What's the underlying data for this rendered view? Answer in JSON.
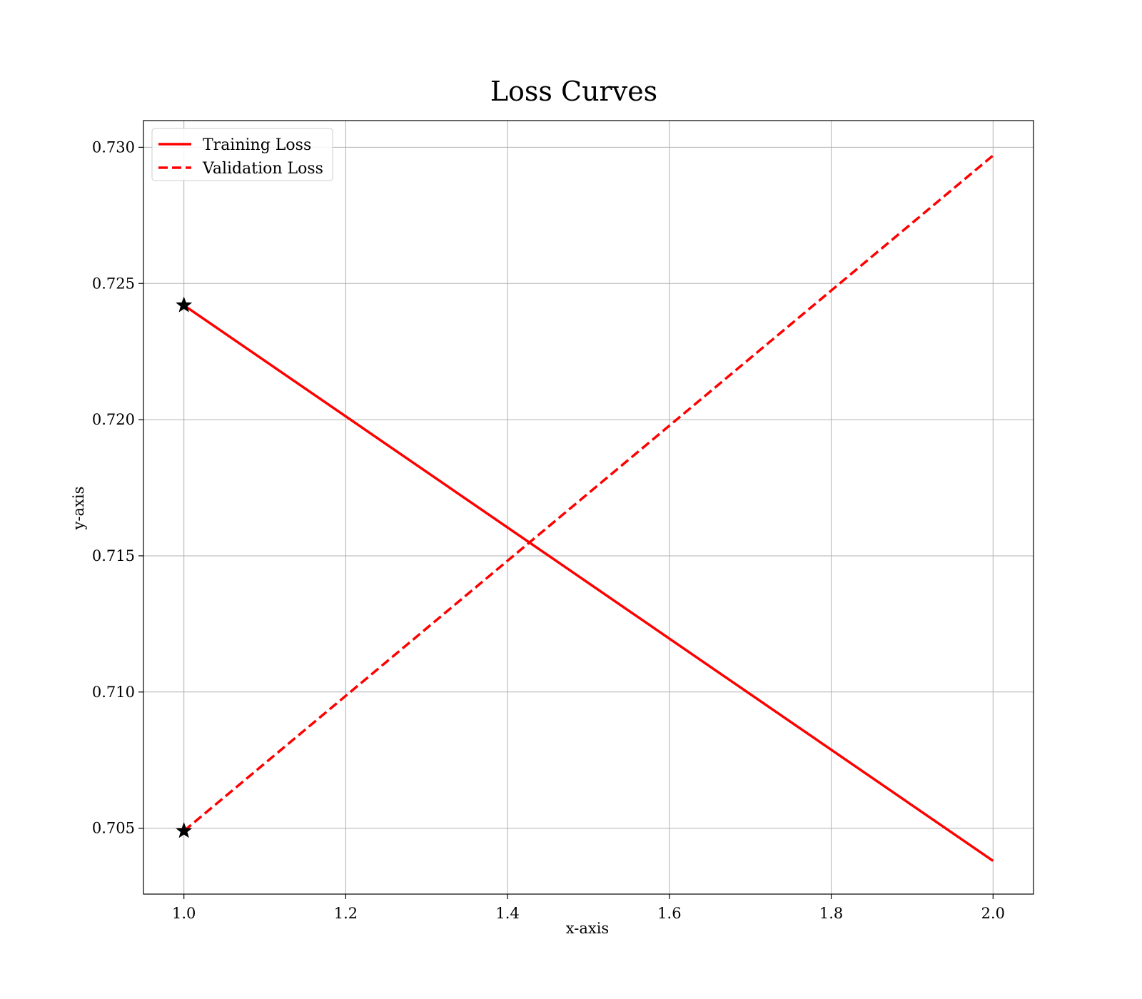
{
  "chart_data": {
    "type": "line",
    "title": "Loss Curves",
    "xlabel": "x-axis",
    "ylabel": "y-axis",
    "xlim": [
      0.95,
      2.05
    ],
    "ylim": [
      0.70258,
      0.73098
    ],
    "xticks": [
      1.0,
      1.2,
      1.4,
      1.6,
      1.8,
      2.0
    ],
    "xtick_labels": [
      "1.0",
      "1.2",
      "1.4",
      "1.6",
      "1.8",
      "2.0"
    ],
    "yticks": [
      0.705,
      0.71,
      0.715,
      0.72,
      0.725,
      0.73
    ],
    "ytick_labels": [
      "0.705",
      "0.710",
      "0.715",
      "0.720",
      "0.725",
      "0.730"
    ],
    "grid": true,
    "legend_position": "top-left",
    "x": [
      1.0,
      2.0
    ],
    "series": [
      {
        "name": "Training Loss",
        "values": [
          0.7242,
          0.7038
        ],
        "color": "#ff0000",
        "linestyle": "solid"
      },
      {
        "name": "Validation Loss",
        "values": [
          0.7049,
          0.7297
        ],
        "color": "#ff0000",
        "linestyle": "dashed"
      }
    ],
    "markers": {
      "symbol": "star",
      "color": "#000000",
      "points": [
        {
          "x": 1.0,
          "y": 0.7242
        },
        {
          "x": 1.0,
          "y": 0.7049
        }
      ]
    }
  }
}
